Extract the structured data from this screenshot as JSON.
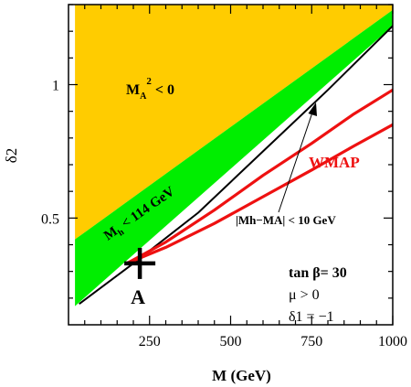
{
  "chart_data": {
    "type": "area",
    "xlabel": "M (GeV)",
    "ylabel": "δ2",
    "xlim": [
      0,
      1000
    ],
    "ylim": [
      0.1,
      1.3
    ],
    "x_ticks": [
      250,
      500,
      750,
      1000
    ],
    "y_ticks": [
      0.5,
      1
    ],
    "grid": false,
    "regions": [
      {
        "name_main": "M",
        "name_sub": "A",
        "name_sup": "2",
        "name_rest": " < 0",
        "color": "#FFCC00",
        "polygon": [
          [
            20,
            1.3
          ],
          [
            1000,
            1.3
          ],
          [
            1000,
            1.28
          ],
          [
            20,
            0.42
          ]
        ]
      },
      {
        "name_main": "M",
        "name_sub": "h",
        "name_rest": " < 114 GeV",
        "color": "#00EE00",
        "polygon": [
          [
            20,
            0.42
          ],
          [
            1000,
            1.28
          ],
          [
            1000,
            1.22
          ],
          [
            20,
            0.17
          ]
        ]
      }
    ],
    "series": [
      {
        "name": "|Mh−MA| < 10 GeV",
        "color": "#000000",
        "values": [
          [
            35,
            0.18
          ],
          [
            200,
            0.33
          ],
          [
            400,
            0.52
          ],
          [
            600,
            0.75
          ],
          [
            800,
            0.98
          ],
          [
            1000,
            1.22
          ]
        ]
      },
      {
        "name": "WMAP",
        "color": "#EE1111",
        "values": [
          [
            180,
            0.33
          ],
          [
            300,
            0.41
          ],
          [
            450,
            0.53
          ],
          [
            600,
            0.66
          ],
          [
            750,
            0.78
          ],
          [
            880,
            0.89
          ],
          [
            1000,
            0.98
          ]
        ]
      },
      {
        "name": "",
        "color": "#EE1111",
        "values": [
          [
            180,
            0.33
          ],
          [
            300,
            0.39
          ],
          [
            450,
            0.48
          ],
          [
            600,
            0.58
          ],
          [
            750,
            0.68
          ],
          [
            880,
            0.77
          ],
          [
            1000,
            0.85
          ]
        ]
      }
    ],
    "point": {
      "label": "A",
      "x": 220,
      "y": 0.33
    },
    "annotations": {
      "tan_beta": "tan β= 30",
      "mu": "μ > 0",
      "delta1": "δ1 = −1"
    }
  }
}
